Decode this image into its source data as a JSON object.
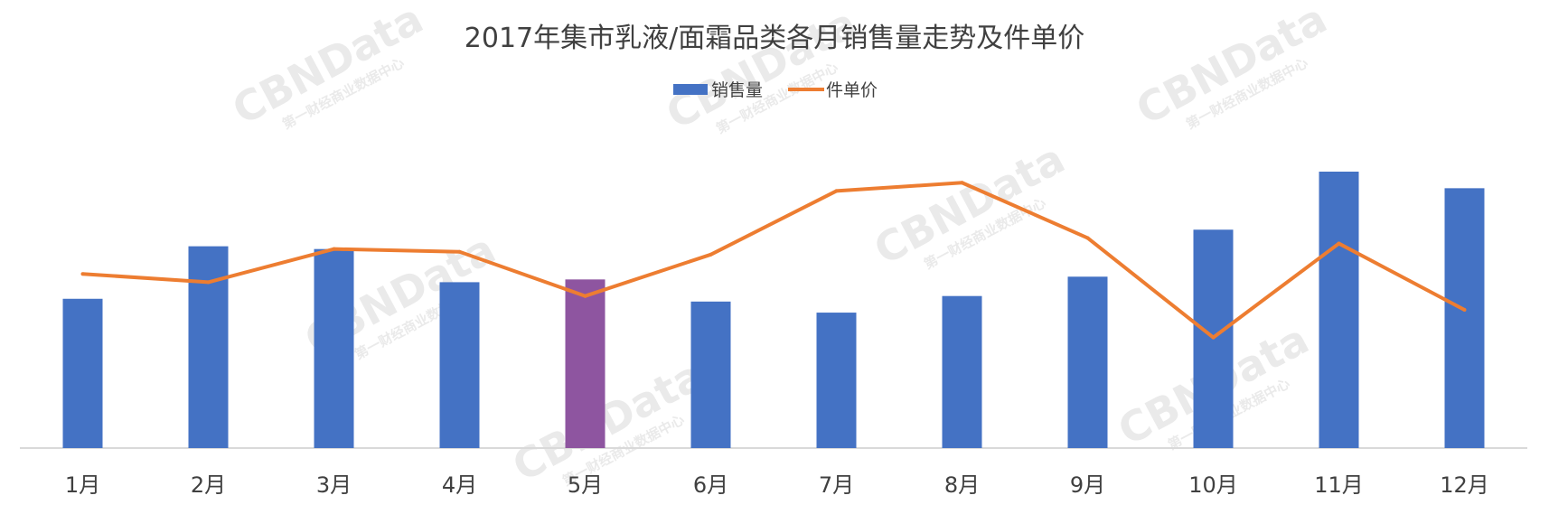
{
  "chart_data": {
    "type": "bar",
    "title": "2017年集市乳液/面霜品类各月销售量走势及件单价",
    "categories": [
      "1月",
      "2月",
      "3月",
      "4月",
      "5月",
      "6月",
      "7月",
      "8月",
      "9月",
      "10月",
      "11月",
      "12月"
    ],
    "series": [
      {
        "name": "销售量",
        "type": "bar",
        "color": "#4472C4",
        "highlight": {
          "category": "5月",
          "color": "#8E55A0"
        },
        "values": [
          0.54,
          0.73,
          0.72,
          0.6,
          0.61,
          0.53,
          0.49,
          0.55,
          0.62,
          0.79,
          1.0,
          0.94
        ]
      },
      {
        "name": "件单价",
        "type": "line",
        "color": "#ED7D31",
        "values": [
          0.63,
          0.6,
          0.72,
          0.71,
          0.55,
          0.7,
          0.93,
          0.96,
          0.76,
          0.4,
          0.74,
          0.5
        ]
      }
    ],
    "xlabel": "",
    "ylabel": "",
    "ylim": [
      0,
      1
    ],
    "grid": false,
    "legend_position": "top-center",
    "watermark": {
      "brand": "CBNData",
      "sub": "第一财经商业数据中心"
    }
  }
}
